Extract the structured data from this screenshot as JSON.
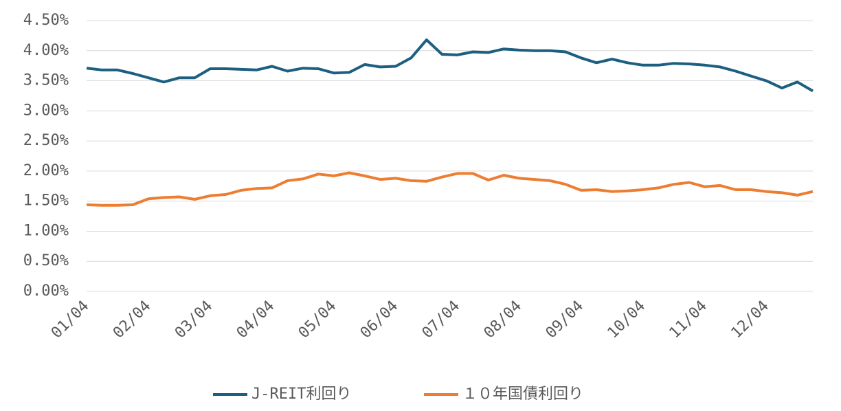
{
  "chart_data": {
    "type": "line",
    "categories": [
      "01/04",
      null,
      null,
      null,
      "02/04",
      null,
      null,
      null,
      "03/04",
      null,
      null,
      null,
      "04/04",
      null,
      null,
      null,
      "05/04",
      null,
      null,
      null,
      "06/04",
      null,
      null,
      null,
      "07/04",
      null,
      null,
      null,
      "08/04",
      null,
      null,
      null,
      "09/04",
      null,
      null,
      null,
      "10/04",
      null,
      null,
      null,
      "11/04",
      null,
      null,
      null,
      "12/04",
      null,
      null,
      null
    ],
    "series": [
      {
        "name": "J-REIT利回り",
        "color": "#1c5f80",
        "values": [
          3.71,
          3.68,
          3.68,
          3.62,
          3.55,
          3.48,
          3.55,
          3.55,
          3.7,
          3.7,
          3.69,
          3.68,
          3.74,
          3.66,
          3.71,
          3.7,
          3.63,
          3.64,
          3.77,
          3.73,
          3.74,
          3.88,
          4.18,
          3.94,
          3.93,
          3.98,
          3.97,
          4.03,
          4.01,
          4.0,
          4.0,
          3.98,
          3.88,
          3.8,
          3.86,
          3.8,
          3.76,
          3.76,
          3.79,
          3.78,
          3.76,
          3.73,
          3.66,
          3.58,
          3.5,
          3.38,
          3.48,
          3.33
        ]
      },
      {
        "name": "１０年国債利回り",
        "color": "#ed7d31",
        "values": [
          1.44,
          1.43,
          1.43,
          1.44,
          1.54,
          1.56,
          1.57,
          1.53,
          1.59,
          1.61,
          1.68,
          1.71,
          1.72,
          1.84,
          1.87,
          1.95,
          1.92,
          1.97,
          1.92,
          1.86,
          1.88,
          1.84,
          1.83,
          1.9,
          1.96,
          1.96,
          1.85,
          1.93,
          1.88,
          1.86,
          1.84,
          1.78,
          1.68,
          1.69,
          1.66,
          1.67,
          1.69,
          1.72,
          1.78,
          1.81,
          1.74,
          1.76,
          1.69,
          1.69,
          1.66,
          1.64,
          1.6,
          1.66
        ]
      }
    ],
    "ylim": [
      0,
      4.5
    ],
    "yticks": [
      {
        "value": 0,
        "label": "0.00%"
      },
      {
        "value": 0.5,
        "label": "0.50%"
      },
      {
        "value": 1,
        "label": "1.00%"
      },
      {
        "value": 1.5,
        "label": "1.50%"
      },
      {
        "value": 2,
        "label": "2.00%"
      },
      {
        "value": 2.5,
        "label": "2.50%"
      },
      {
        "value": 3,
        "label": "3.00%"
      },
      {
        "value": 3.5,
        "label": "3.50%"
      },
      {
        "value": 4,
        "label": "4.00%"
      },
      {
        "value": 4.5,
        "label": "4.50%"
      }
    ],
    "grid": true,
    "legend": "bottom"
  }
}
